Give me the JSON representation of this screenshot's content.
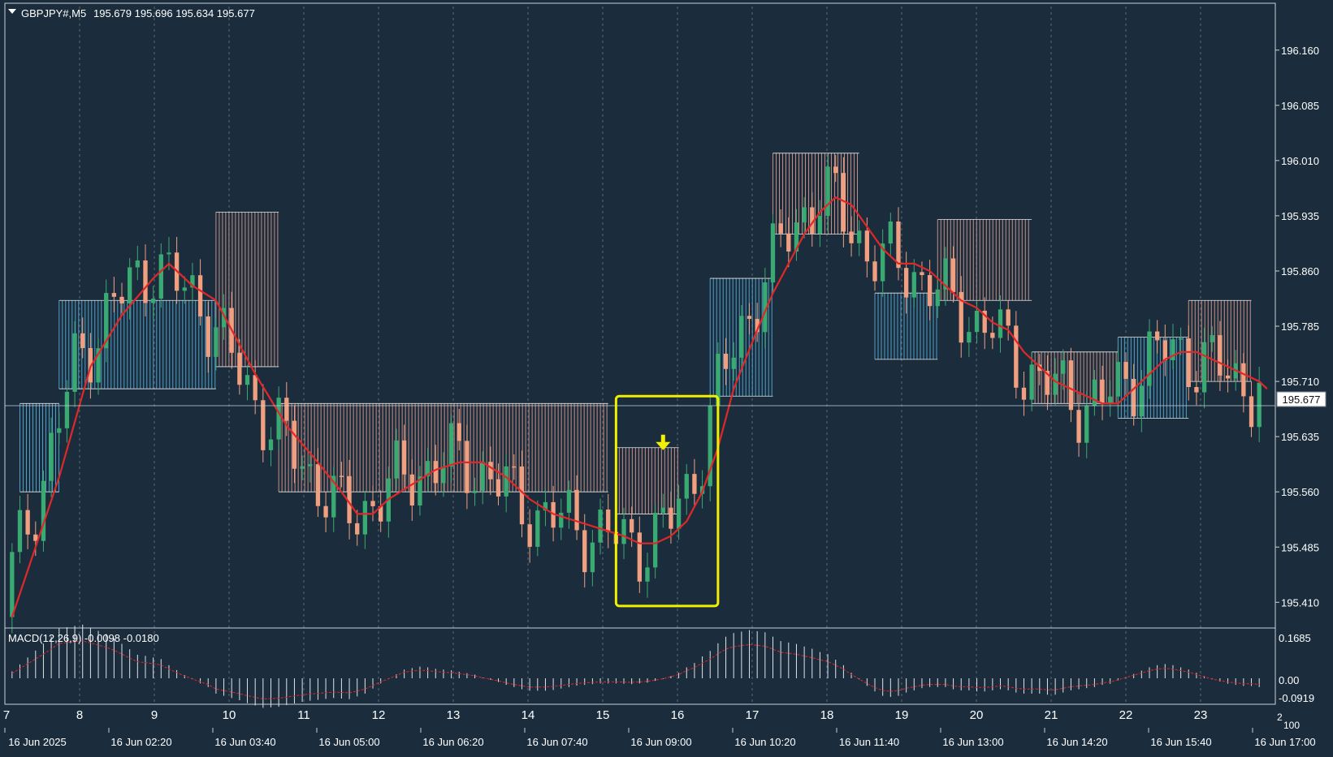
{
  "header": {
    "symbol": "GBPJPY#,M5",
    "ohlc": "195.679 195.696 195.634 195.677"
  },
  "macd_label": "MACD(12,26,9) -0.0098 -0.0180",
  "current_price": "195.677",
  "colors": {
    "background": "#1b2d3d",
    "bull": "#3aaa73",
    "bear": "#f0a080",
    "ma": "#e02828",
    "cloud_bull": "#5ab4e0",
    "cloud_bear": "#e8a090",
    "highlight": "#f0f000",
    "grid": "#8a98a6"
  },
  "chart_data": {
    "type": "candlestick",
    "ylim": [
      195.385,
      196.195
    ],
    "price_ticks": [
      "196.160",
      "196.085",
      "196.010",
      "195.935",
      "195.860",
      "195.785",
      "195.710",
      "195.635",
      "195.560",
      "195.485",
      "195.410"
    ],
    "day_ticks": [
      "7",
      "8",
      "9",
      "10",
      "11",
      "12",
      "13",
      "14",
      "15",
      "16",
      "17",
      "18",
      "19",
      "20",
      "21",
      "22",
      "23"
    ],
    "time_labels": [
      "16 Jun 2025",
      "16 Jun 02:20",
      "16 Jun 03:40",
      "16 Jun 05:00",
      "16 Jun 06:20",
      "16 Jun 07:40",
      "16 Jun 09:00",
      "16 Jun 10:20",
      "16 Jun 11:40",
      "16 Jun 13:00",
      "16 Jun 14:20",
      "16 Jun 15:40",
      "16 Jun 17:00"
    ],
    "macd_ticks": [
      "0.1685",
      "0.00",
      "-0.0919"
    ],
    "edge_labels": [
      "2",
      "100"
    ],
    "ma_path": [
      [
        0,
        195.39
      ],
      [
        6,
        195.58
      ],
      [
        10,
        195.73
      ],
      [
        14,
        195.8
      ],
      [
        18,
        195.85
      ],
      [
        20,
        195.87
      ],
      [
        23,
        195.84
      ],
      [
        26,
        195.82
      ],
      [
        28,
        195.78
      ],
      [
        31,
        195.72
      ],
      [
        35,
        195.65
      ],
      [
        39,
        195.6
      ],
      [
        42,
        195.56
      ],
      [
        44,
        195.53
      ],
      [
        46,
        195.53
      ],
      [
        48,
        195.55
      ],
      [
        51,
        195.57
      ],
      [
        54,
        195.59
      ],
      [
        57,
        195.6
      ],
      [
        60,
        195.6
      ],
      [
        63,
        195.58
      ],
      [
        66,
        195.55
      ],
      [
        69,
        195.53
      ],
      [
        72,
        195.52
      ],
      [
        75,
        195.51
      ],
      [
        78,
        195.5
      ],
      [
        80,
        195.49
      ],
      [
        82,
        195.49
      ],
      [
        84,
        195.5
      ],
      [
        86,
        195.52
      ],
      [
        88,
        195.56
      ],
      [
        90,
        195.62
      ],
      [
        92,
        195.7
      ],
      [
        95,
        195.78
      ],
      [
        97,
        195.83
      ],
      [
        99,
        195.87
      ],
      [
        101,
        195.91
      ],
      [
        103,
        195.94
      ],
      [
        105,
        195.96
      ],
      [
        107,
        195.95
      ],
      [
        109,
        195.92
      ],
      [
        111,
        195.89
      ],
      [
        113,
        195.87
      ],
      [
        115,
        195.87
      ],
      [
        117,
        195.86
      ],
      [
        119,
        195.84
      ],
      [
        121,
        195.82
      ],
      [
        123,
        195.81
      ],
      [
        125,
        195.79
      ],
      [
        127,
        195.78
      ],
      [
        129,
        195.75
      ],
      [
        131,
        195.73
      ],
      [
        133,
        195.71
      ],
      [
        135,
        195.7
      ],
      [
        137,
        195.69
      ],
      [
        139,
        195.68
      ],
      [
        141,
        195.68
      ],
      [
        143,
        195.7
      ],
      [
        145,
        195.72
      ],
      [
        147,
        195.74
      ],
      [
        149,
        195.75
      ],
      [
        151,
        195.75
      ],
      [
        153,
        195.74
      ],
      [
        155,
        195.73
      ],
      [
        157,
        195.72
      ],
      [
        159,
        195.71
      ],
      [
        160,
        195.7
      ]
    ],
    "cloud": [
      {
        "from": 1,
        "to": 6,
        "a": 195.68,
        "b": 195.56,
        "kind": "bull"
      },
      {
        "from": 6,
        "to": 26,
        "a": 195.82,
        "b": 195.7,
        "kind": "bull"
      },
      {
        "from": 26,
        "to": 34,
        "a": 195.94,
        "b": 195.73,
        "kind": "bear"
      },
      {
        "from": 34,
        "to": 76,
        "a": 195.68,
        "b": 195.56,
        "kind": "bear"
      },
      {
        "from": 77,
        "to": 85,
        "a": 195.62,
        "b": 195.53,
        "kind": "bear"
      },
      {
        "from": 89,
        "to": 97,
        "a": 195.85,
        "b": 195.69,
        "kind": "bull"
      },
      {
        "from": 97,
        "to": 108,
        "a": 196.02,
        "b": 195.91,
        "kind": "bear"
      },
      {
        "from": 110,
        "to": 118,
        "a": 195.83,
        "b": 195.74,
        "kind": "bull"
      },
      {
        "from": 118,
        "to": 130,
        "a": 195.93,
        "b": 195.82,
        "kind": "bear"
      },
      {
        "from": 130,
        "to": 141,
        "a": 195.75,
        "b": 195.68,
        "kind": "bear"
      },
      {
        "from": 141,
        "to": 150,
        "a": 195.77,
        "b": 195.66,
        "kind": "bull"
      },
      {
        "from": 150,
        "to": 158,
        "a": 195.82,
        "b": 195.71,
        "kind": "bear"
      }
    ],
    "highlight_box": {
      "from": 77,
      "to": 90,
      "top": 195.69,
      "bottom": 195.405
    },
    "arrow": {
      "bar": 83,
      "price": 195.62
    }
  }
}
